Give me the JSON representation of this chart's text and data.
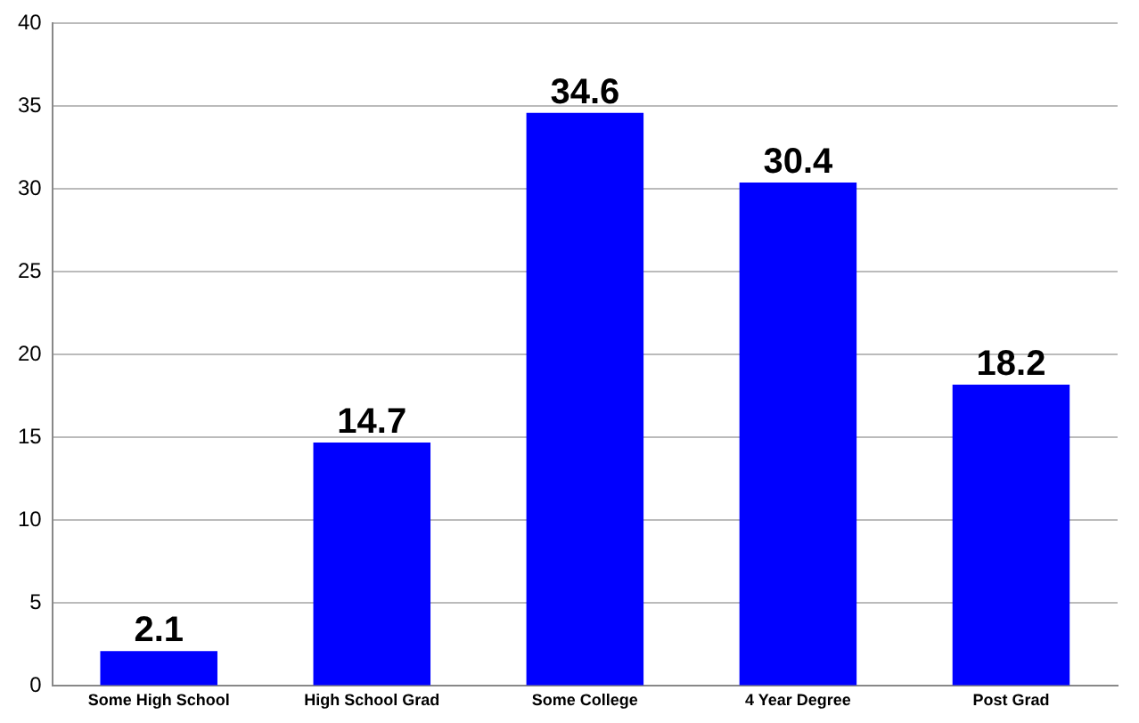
{
  "chart_data": {
    "type": "bar",
    "categories": [
      "Some High School",
      "High School Grad",
      "Some College",
      "4 Year Degree",
      "Post Grad"
    ],
    "values": [
      2.1,
      14.7,
      34.6,
      30.4,
      18.2
    ],
    "color": "#0000ff",
    "ylim": [
      0,
      40
    ],
    "yticks": [
      0,
      5,
      10,
      15,
      20,
      25,
      30,
      35,
      40
    ],
    "grid": "y",
    "data_labels": true,
    "legend": false
  }
}
